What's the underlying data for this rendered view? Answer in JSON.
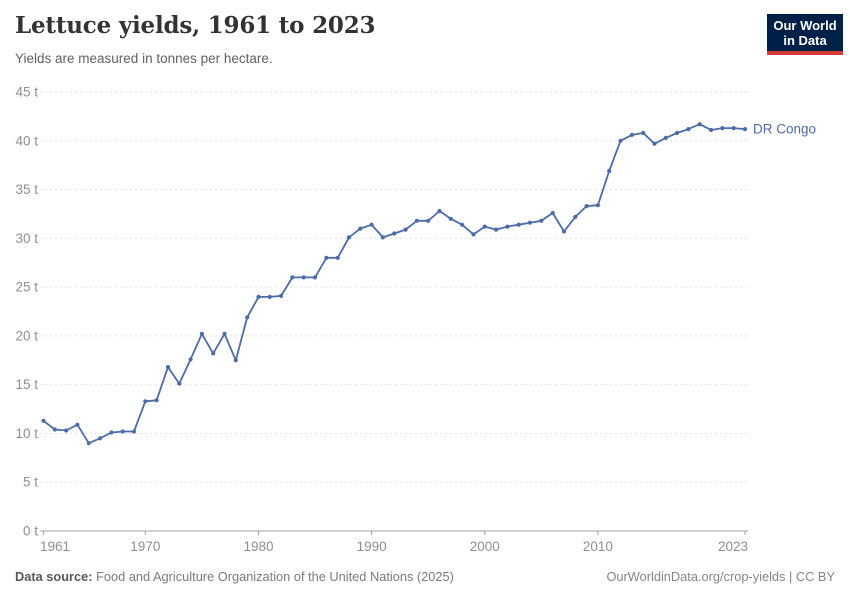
{
  "header": {
    "title": "Lettuce yields, 1961 to 2023",
    "subtitle": "Yields are measured in tonnes per hectare.",
    "logo": {
      "line1": "Our World",
      "line2": "in Data",
      "bg_color": "#002147",
      "accent_color": "#d13b33"
    }
  },
  "chart_data": {
    "type": "line",
    "title": "Lettuce yields, 1961 to 2023",
    "ylabel": "",
    "xlabel": "",
    "unit": "tonnes per hectare",
    "grid": "horizontal-dashed",
    "legend_position": "end-of-line-label",
    "xlim": [
      1961,
      2023
    ],
    "ylim": [
      0,
      45
    ],
    "x_ticks": [
      1961,
      1970,
      1980,
      1990,
      2000,
      2010,
      2023
    ],
    "y_ticks": [
      0,
      5,
      10,
      15,
      20,
      25,
      30,
      35,
      40,
      45
    ],
    "y_tick_suffix": " t",
    "x": [
      1961,
      1962,
      1963,
      1964,
      1965,
      1966,
      1967,
      1968,
      1969,
      1970,
      1971,
      1972,
      1973,
      1974,
      1975,
      1976,
      1977,
      1978,
      1979,
      1980,
      1981,
      1982,
      1983,
      1984,
      1985,
      1986,
      1987,
      1988,
      1989,
      1990,
      1991,
      1992,
      1993,
      1994,
      1995,
      1996,
      1997,
      1998,
      1999,
      2000,
      2001,
      2002,
      2003,
      2004,
      2005,
      2006,
      2007,
      2008,
      2009,
      2010,
      2011,
      2012,
      2013,
      2014,
      2015,
      2016,
      2017,
      2018,
      2019,
      2020,
      2021,
      2022,
      2023
    ],
    "series": [
      {
        "name": "DR Congo",
        "color": "#4C6CA8",
        "values": [
          11.3,
          10.4,
          10.3,
          10.9,
          9.0,
          9.5,
          10.1,
          10.2,
          10.2,
          13.3,
          13.4,
          16.8,
          15.1,
          17.6,
          20.2,
          18.2,
          20.2,
          17.5,
          21.9,
          24.0,
          24.0,
          24.1,
          26.0,
          26.0,
          26.0,
          28.0,
          28.0,
          30.1,
          31.0,
          31.4,
          30.1,
          30.5,
          30.9,
          31.8,
          31.8,
          32.8,
          32.0,
          31.4,
          30.4,
          31.2,
          30.9,
          31.2,
          31.4,
          31.6,
          31.8,
          32.6,
          30.7,
          32.2,
          33.3,
          33.4,
          36.9,
          40.0,
          40.6,
          40.8,
          39.7,
          40.3,
          40.8,
          41.2,
          41.7,
          41.1,
          41.3,
          41.3,
          41.2
        ]
      }
    ],
    "colors": {
      "gridline": "#e2e2e2",
      "axis": "#a3a3a3",
      "tick_label": "#8f8f8f"
    }
  },
  "footer": {
    "source_label": "Data source:",
    "source_text": "Food and Agriculture Organization of the United Nations (2025)",
    "link_text": "OurWorldinData.org/crop-yields",
    "separator": "|",
    "license_text": "CC BY"
  }
}
